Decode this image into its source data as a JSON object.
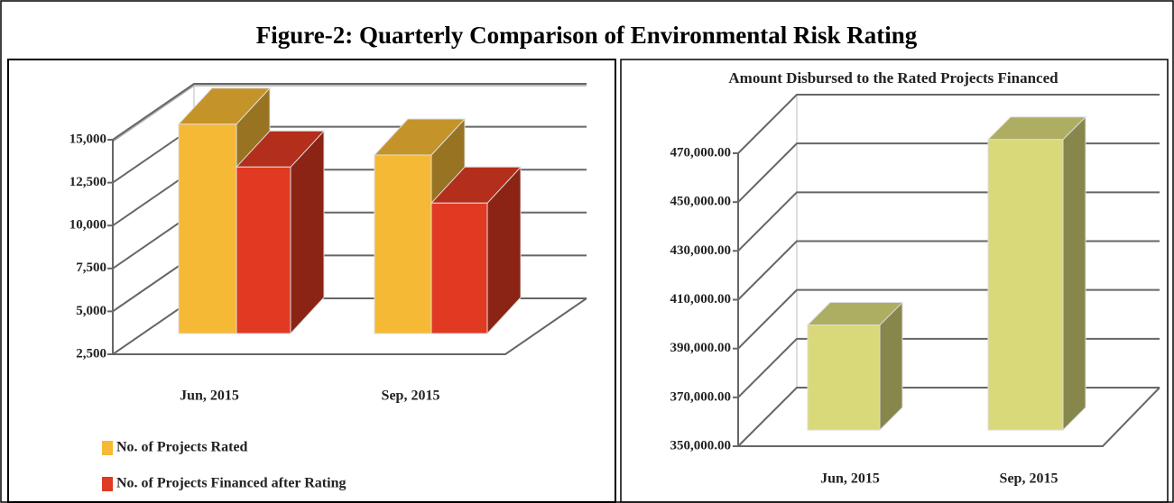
{
  "title": "Figure-2: Quarterly Comparison of Environmental Risk Rating",
  "chart_data": [
    {
      "type": "bar3d",
      "categories": [
        "Jun, 2015",
        "Sep, 2015"
      ],
      "series": [
        {
          "name": "No. of Projects Rated",
          "color": "#f5b935",
          "values": [
            14700,
            12900
          ]
        },
        {
          "name": "No. of Projects Financed after Rating",
          "color": "#e03a22",
          "values": [
            12200,
            10100
          ]
        }
      ],
      "ylim": [
        2500,
        15000
      ],
      "yticks": [
        {
          "value": 2500,
          "label": "2,500"
        },
        {
          "value": 5000,
          "label": "5,000"
        },
        {
          "value": 7500,
          "label": "7,500"
        },
        {
          "value": 10000,
          "label": "10,000"
        },
        {
          "value": 12500,
          "label": "12,500"
        },
        {
          "value": 15000,
          "label": "15,000"
        }
      ],
      "grid": true,
      "legend": "bottom-left"
    },
    {
      "type": "bar3d",
      "title": "Amount Disbursed to the Rated Projects Financed",
      "categories": [
        "Jun, 2015",
        "Sep, 2015"
      ],
      "values": [
        393000,
        469000
      ],
      "color": "#d9d97a",
      "ylim": [
        350000,
        470000
      ],
      "yticks": [
        {
          "value": 350000,
          "label": "350,000.00"
        },
        {
          "value": 370000,
          "label": "370,000.00"
        },
        {
          "value": 390000,
          "label": "390,000.00"
        },
        {
          "value": 410000,
          "label": "410,000.00"
        },
        {
          "value": 430000,
          "label": "430,000.00"
        },
        {
          "value": 450000,
          "label": "450,000.00"
        },
        {
          "value": 470000,
          "label": "470,000.00"
        }
      ],
      "grid": true
    }
  ]
}
